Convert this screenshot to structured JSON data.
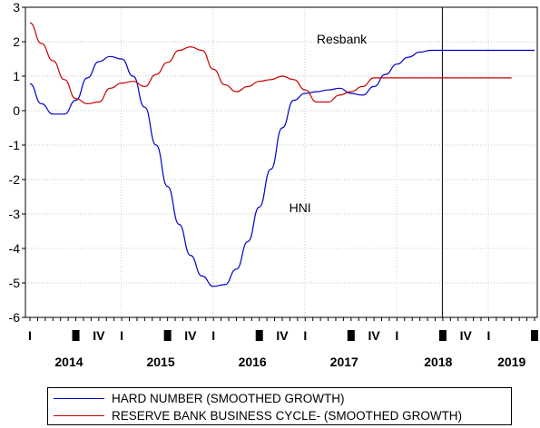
{
  "chart_data": {
    "type": "line",
    "title": "",
    "xlabel": "",
    "ylabel": "",
    "ylim": [
      -6,
      3
    ],
    "yticks": [
      "3",
      "2",
      "1",
      "0",
      "-1",
      "-2",
      "-3",
      "-4",
      "-5",
      "-6"
    ],
    "xlim": [
      0,
      22
    ],
    "quarter_ticks": [
      {
        "x": 0,
        "label": "I"
      },
      {
        "x": 2,
        "label": ""
      },
      {
        "x": 3,
        "label": "IV"
      },
      {
        "x": 4,
        "label": "I"
      },
      {
        "x": 6,
        "label": ""
      },
      {
        "x": 7,
        "label": "IV"
      },
      {
        "x": 8,
        "label": "I"
      },
      {
        "x": 10,
        "label": ""
      },
      {
        "x": 11,
        "label": "IV"
      },
      {
        "x": 12,
        "label": "I"
      },
      {
        "x": 14,
        "label": ""
      },
      {
        "x": 15,
        "label": "IV"
      },
      {
        "x": 16,
        "label": "I"
      },
      {
        "x": 18,
        "label": ""
      },
      {
        "x": 19,
        "label": "IV"
      },
      {
        "x": 20,
        "label": "I"
      },
      {
        "x": 22,
        "label": ""
      }
    ],
    "years": [
      {
        "label": "2014",
        "x": 1.7
      },
      {
        "label": "2015",
        "x": 5.7
      },
      {
        "label": "2016",
        "x": 9.7
      },
      {
        "label": "2017",
        "x": 13.7
      },
      {
        "label": "2018",
        "x": 17.8
      },
      {
        "label": "2019",
        "x": 21.0
      }
    ],
    "vline_x": 18.0,
    "series": [
      {
        "name": "HARD NUMBER (SMOOTHED GROWTH)",
        "color": "#0000c8",
        "x": [
          0,
          0.5,
          1,
          1.5,
          2,
          2.5,
          3,
          3.5,
          4,
          4.5,
          5,
          5.5,
          6,
          6.5,
          7,
          7.5,
          8,
          8.5,
          9,
          9.5,
          10,
          10.5,
          11,
          11.5,
          12,
          12.5,
          13,
          13.5,
          14,
          14.5,
          15,
          15.5,
          16,
          16.5,
          17,
          17.5,
          18,
          18.5,
          19,
          19.5,
          20,
          20.5,
          21,
          21.5,
          22
        ],
        "values": [
          0.78,
          0.2,
          -0.1,
          -0.1,
          0.3,
          0.95,
          1.42,
          1.57,
          1.5,
          1.0,
          0.1,
          -1.0,
          -2.2,
          -3.3,
          -4.2,
          -4.8,
          -5.1,
          -5.05,
          -4.6,
          -3.8,
          -2.8,
          -1.7,
          -0.5,
          0.3,
          0.5,
          0.55,
          0.6,
          0.65,
          0.5,
          0.45,
          0.7,
          1.05,
          1.35,
          1.55,
          1.7,
          1.75,
          1.75,
          1.75,
          1.75,
          1.75,
          1.75,
          1.75,
          1.75,
          1.75,
          1.75
        ]
      },
      {
        "name": "RESERVE BANK BUSINESS CYCLE- (SMOOTHED GROWTH)",
        "color": "#c80000",
        "x": [
          0,
          0.5,
          1,
          1.5,
          2,
          2.5,
          3,
          3.5,
          4,
          4.5,
          5,
          5.5,
          6,
          6.5,
          7,
          7.5,
          8,
          8.5,
          9,
          9.5,
          10,
          10.5,
          11,
          11.5,
          12,
          12.5,
          13,
          13.5,
          14,
          14.5,
          15,
          15.5,
          16,
          16.5,
          17,
          17.5,
          18,
          18.5,
          19,
          19.5,
          20,
          20.5,
          21
        ],
        "values": [
          2.55,
          1.95,
          1.45,
          0.9,
          0.35,
          0.2,
          0.25,
          0.65,
          0.8,
          0.85,
          0.7,
          1.05,
          1.4,
          1.75,
          1.85,
          1.75,
          1.2,
          0.75,
          0.55,
          0.7,
          0.85,
          0.9,
          1.0,
          0.9,
          0.6,
          0.25,
          0.25,
          0.45,
          0.55,
          0.7,
          0.95,
          0.95,
          0.95,
          0.95,
          0.95,
          0.95,
          0.95,
          0.95,
          0.95,
          0.95,
          0.95,
          0.95,
          0.95
        ]
      }
    ],
    "annotations": [
      {
        "text": "Resbank",
        "x": 12.5,
        "y": 1.95
      },
      {
        "text": "HNI",
        "x": 11.3,
        "y": -2.95
      }
    ]
  }
}
